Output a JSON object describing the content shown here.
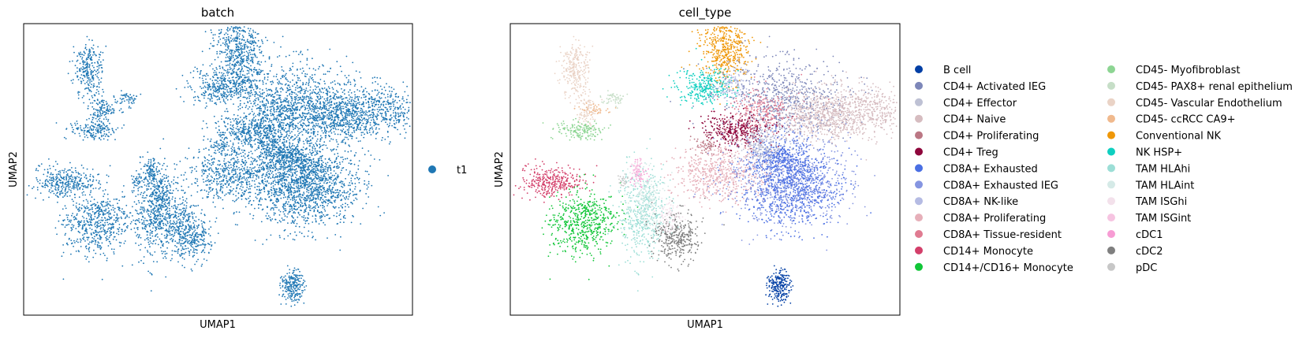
{
  "chart_data": [
    {
      "type": "scatter",
      "title": "batch",
      "xlabel": "UMAP1",
      "ylabel": "UMAP2",
      "grid": false,
      "ticks": false,
      "legend_placement": "right",
      "legend": [
        {
          "label": "t1",
          "color": "#1f77b4"
        }
      ]
    },
    {
      "type": "scatter",
      "title": "cell_type",
      "xlabel": "UMAP1",
      "ylabel": "UMAP2",
      "grid": false,
      "ticks": false,
      "legend_placement": "right",
      "legend": [
        {
          "label": "B cell",
          "color": "#023fa5"
        },
        {
          "label": "CD4+ Activated IEG",
          "color": "#7d87b9"
        },
        {
          "label": "CD4+ Effector",
          "color": "#bec1d4"
        },
        {
          "label": "CD4+ Naive",
          "color": "#d6bcc0"
        },
        {
          "label": "CD4+ Proliferating",
          "color": "#bb7784"
        },
        {
          "label": "CD4+ Treg",
          "color": "#8e063b"
        },
        {
          "label": "CD8A+ Exhausted",
          "color": "#4a6fe3"
        },
        {
          "label": "CD8A+ Exhausted IEG",
          "color": "#8595e1"
        },
        {
          "label": "CD8A+ NK-like",
          "color": "#b5bbe3"
        },
        {
          "label": "CD8A+ Proliferating",
          "color": "#e6afb9"
        },
        {
          "label": "CD8A+ Tissue-resident",
          "color": "#e07b91"
        },
        {
          "label": "CD14+ Monocyte",
          "color": "#d33f6a"
        },
        {
          "label": "CD14+/CD16+ Monocyte",
          "color": "#11c638"
        },
        {
          "label": "CD45- Myofibroblast",
          "color": "#8dd593"
        },
        {
          "label": "CD45- PAX8+ renal epithelium",
          "color": "#c6dec7"
        },
        {
          "label": "CD45- Vascular Endothelium",
          "color": "#ead3c6"
        },
        {
          "label": "CD45- ccRCC CA9+",
          "color": "#f0b98d"
        },
        {
          "label": "Conventional NK",
          "color": "#ef9708"
        },
        {
          "label": "NK HSP+",
          "color": "#0fcfc0"
        },
        {
          "label": "TAM HLAhi",
          "color": "#9cded6"
        },
        {
          "label": "TAM HLAint",
          "color": "#d5eae7"
        },
        {
          "label": "TAM ISGhi",
          "color": "#f3e1eb"
        },
        {
          "label": "TAM ISGint",
          "color": "#f6c4e1"
        },
        {
          "label": "cDC1",
          "color": "#f79cd4"
        },
        {
          "label": "cDC2",
          "color": "#7f7f7f"
        },
        {
          "label": "pDC",
          "color": "#c7c7c7"
        }
      ]
    }
  ]
}
